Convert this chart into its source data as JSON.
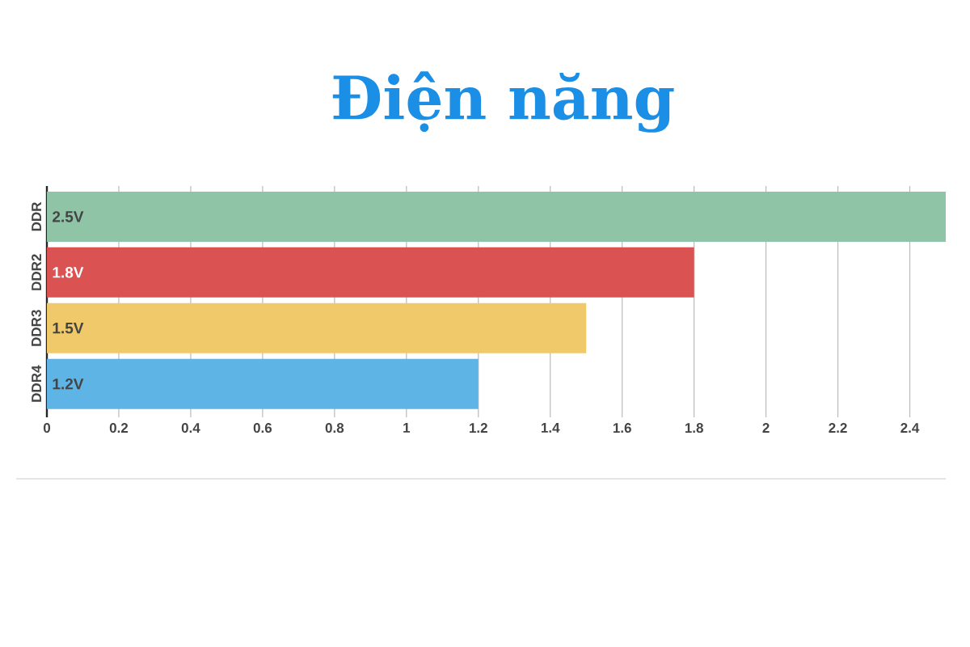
{
  "chart_data": {
    "type": "bar",
    "orientation": "horizontal",
    "title": "Điện năng",
    "categories": [
      "DDR",
      "DDR2",
      "DDR3",
      "DDR4"
    ],
    "values": [
      2.5,
      1.8,
      1.5,
      1.2
    ],
    "colors": [
      "#8fc4a7",
      "#db5253",
      "#efc96a",
      "#5db4e5"
    ],
    "value_labels": [
      "2.5V",
      "1.8V",
      "1.5V",
      "1.2V"
    ],
    "xlim": [
      0,
      2.5
    ],
    "xticks": [
      0,
      0.2,
      0.4,
      0.6,
      0.8,
      1,
      1.2,
      1.4,
      1.6,
      1.8,
      2,
      2.2,
      2.4
    ],
    "grid": "x"
  }
}
